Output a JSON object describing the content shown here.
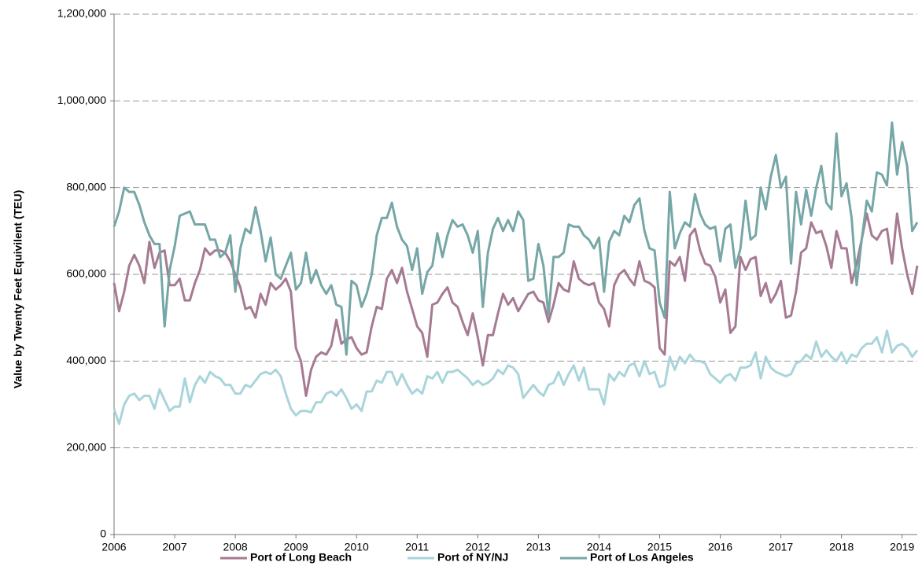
{
  "chart_data": {
    "type": "line",
    "y_label": "Value by Twenty Feet Equivilent (TEU)",
    "xlim": [
      2006,
      2019.25
    ],
    "xticks": [
      2006,
      2007,
      2008,
      2009,
      2010,
      2011,
      2012,
      2013,
      2014,
      2015,
      2016,
      2017,
      2018,
      2019
    ],
    "ylim": [
      0,
      1200000
    ],
    "yticks": [
      0,
      {
        "value": 200000,
        "label": "200,000"
      },
      {
        "value": 400000,
        "label": "400,000"
      },
      {
        "value": 600000,
        "label": "600,000"
      },
      {
        "value": 800000,
        "label": "800,000"
      },
      {
        "value": 1000000,
        "label": "1,000,000"
      },
      {
        "value": 1200000,
        "label": "1,200,000"
      }
    ],
    "grid": true,
    "legend": "bottom",
    "x": [
      2006,
      2006.083,
      2006.167,
      2006.25,
      2006.333,
      2006.417,
      2006.5,
      2006.583,
      2006.667,
      2006.75,
      2006.833,
      2006.917,
      2007,
      2007.083,
      2007.167,
      2007.25,
      2007.333,
      2007.417,
      2007.5,
      2007.583,
      2007.667,
      2007.75,
      2007.833,
      2007.917,
      2008,
      2008.083,
      2008.167,
      2008.25,
      2008.333,
      2008.417,
      2008.5,
      2008.583,
      2008.667,
      2008.75,
      2008.833,
      2008.917,
      2009,
      2009.083,
      2009.167,
      2009.25,
      2009.333,
      2009.417,
      2009.5,
      2009.583,
      2009.667,
      2009.75,
      2009.833,
      2009.917,
      2010,
      2010.083,
      2010.167,
      2010.25,
      2010.333,
      2010.417,
      2010.5,
      2010.583,
      2010.667,
      2010.75,
      2010.833,
      2010.917,
      2011,
      2011.083,
      2011.167,
      2011.25,
      2011.333,
      2011.417,
      2011.5,
      2011.583,
      2011.667,
      2011.75,
      2011.833,
      2011.917,
      2012,
      2012.083,
      2012.167,
      2012.25,
      2012.333,
      2012.417,
      2012.5,
      2012.583,
      2012.667,
      2012.75,
      2012.833,
      2012.917,
      2013,
      2013.083,
      2013.167,
      2013.25,
      2013.333,
      2013.417,
      2013.5,
      2013.583,
      2013.667,
      2013.75,
      2013.833,
      2013.917,
      2014,
      2014.083,
      2014.167,
      2014.25,
      2014.333,
      2014.417,
      2014.5,
      2014.583,
      2014.667,
      2014.75,
      2014.833,
      2014.917,
      2015,
      2015.083,
      2015.167,
      2015.25,
      2015.333,
      2015.417,
      2015.5,
      2015.583,
      2015.667,
      2015.75,
      2015.833,
      2015.917,
      2016,
      2016.083,
      2016.167,
      2016.25,
      2016.333,
      2016.417,
      2016.5,
      2016.583,
      2016.667,
      2016.75,
      2016.833,
      2016.917,
      2017,
      2017.083,
      2017.167,
      2017.25,
      2017.333,
      2017.417,
      2017.5,
      2017.583,
      2017.667,
      2017.75,
      2017.833,
      2017.917,
      2018,
      2018.083,
      2018.167,
      2018.25,
      2018.333,
      2018.417,
      2018.5,
      2018.583,
      2018.667,
      2018.75,
      2018.833,
      2018.917,
      2019,
      2019.083,
      2019.167,
      2019.25
    ],
    "series": [
      {
        "name": "Port of Long Beach",
        "color": "#a67a92",
        "values": [
          580000,
          515000,
          560000,
          620000,
          645000,
          620000,
          580000,
          675000,
          615000,
          650000,
          655000,
          575000,
          575000,
          590000,
          540000,
          540000,
          580000,
          610000,
          660000,
          645000,
          655000,
          655000,
          650000,
          630000,
          600000,
          570000,
          520000,
          525000,
          500000,
          555000,
          530000,
          580000,
          565000,
          575000,
          590000,
          560000,
          430000,
          400000,
          320000,
          380000,
          410000,
          420000,
          415000,
          435000,
          495000,
          440000,
          450000,
          455000,
          430000,
          415000,
          420000,
          480000,
          525000,
          520000,
          590000,
          610000,
          580000,
          615000,
          560000,
          520000,
          480000,
          465000,
          410000,
          530000,
          535000,
          555000,
          570000,
          535000,
          525000,
          490000,
          460000,
          510000,
          455000,
          390000,
          460000,
          460000,
          510000,
          555000,
          530000,
          545000,
          515000,
          535000,
          555000,
          560000,
          540000,
          535000,
          490000,
          530000,
          580000,
          565000,
          560000,
          630000,
          590000,
          580000,
          575000,
          580000,
          535000,
          520000,
          480000,
          575000,
          600000,
          610000,
          590000,
          575000,
          630000,
          585000,
          580000,
          570000,
          430000,
          415000,
          630000,
          620000,
          640000,
          585000,
          690000,
          705000,
          655000,
          625000,
          620000,
          595000,
          535000,
          565000,
          465000,
          480000,
          640000,
          610000,
          635000,
          640000,
          550000,
          580000,
          535000,
          555000,
          585000,
          500000,
          505000,
          560000,
          650000,
          660000,
          720000,
          695000,
          700000,
          665000,
          615000,
          700000,
          660000,
          660000,
          580000,
          625000,
          680000,
          740000,
          690000,
          680000,
          700000,
          705000,
          625000,
          740000,
          660000,
          600000,
          555000,
          620000
        ]
      },
      {
        "name": "Port of NY/NJ",
        "color": "#a9d5da",
        "values": [
          290000,
          255000,
          300000,
          320000,
          325000,
          310000,
          320000,
          320000,
          290000,
          335000,
          310000,
          285000,
          295000,
          295000,
          360000,
          305000,
          345000,
          365000,
          350000,
          375000,
          365000,
          360000,
          345000,
          345000,
          325000,
          325000,
          345000,
          340000,
          355000,
          370000,
          375000,
          370000,
          380000,
          365000,
          325000,
          290000,
          275000,
          285000,
          285000,
          282000,
          305000,
          305000,
          325000,
          330000,
          320000,
          335000,
          315000,
          290000,
          300000,
          285000,
          330000,
          330000,
          355000,
          350000,
          375000,
          375000,
          345000,
          370000,
          345000,
          325000,
          335000,
          325000,
          365000,
          360000,
          375000,
          350000,
          375000,
          375000,
          380000,
          370000,
          360000,
          345000,
          355000,
          345000,
          350000,
          360000,
          380000,
          370000,
          390000,
          385000,
          370000,
          315000,
          330000,
          345000,
          330000,
          320000,
          345000,
          350000,
          375000,
          345000,
          370000,
          390000,
          355000,
          385000,
          335000,
          335000,
          335000,
          300000,
          370000,
          355000,
          375000,
          365000,
          390000,
          395000,
          365000,
          400000,
          370000,
          375000,
          340000,
          345000,
          410000,
          380000,
          410000,
          395000,
          415000,
          400000,
          400000,
          395000,
          370000,
          360000,
          350000,
          365000,
          370000,
          355000,
          385000,
          385000,
          390000,
          420000,
          360000,
          410000,
          385000,
          375000,
          370000,
          365000,
          370000,
          395000,
          400000,
          415000,
          405000,
          445000,
          410000,
          425000,
          410000,
          400000,
          420000,
          395000,
          415000,
          410000,
          430000,
          440000,
          440000,
          455000,
          420000,
          470000,
          420000,
          435000,
          440000,
          430000,
          410000,
          425000
        ]
      },
      {
        "name": "Port of Los Angeles",
        "color": "#76a6a6",
        "values": [
          710000,
          745000,
          800000,
          790000,
          790000,
          760000,
          720000,
          690000,
          670000,
          670000,
          480000,
          610000,
          665000,
          735000,
          740000,
          745000,
          715000,
          715000,
          715000,
          680000,
          680000,
          640000,
          650000,
          690000,
          560000,
          660000,
          705000,
          695000,
          755000,
          700000,
          630000,
          685000,
          600000,
          590000,
          620000,
          650000,
          565000,
          580000,
          650000,
          580000,
          610000,
          575000,
          555000,
          575000,
          530000,
          525000,
          415000,
          585000,
          575000,
          525000,
          555000,
          600000,
          690000,
          730000,
          730000,
          765000,
          710000,
          680000,
          665000,
          610000,
          660000,
          555000,
          605000,
          620000,
          695000,
          640000,
          690000,
          725000,
          710000,
          715000,
          690000,
          650000,
          700000,
          525000,
          650000,
          705000,
          730000,
          700000,
          725000,
          700000,
          745000,
          725000,
          585000,
          590000,
          670000,
          620000,
          505000,
          640000,
          640000,
          650000,
          715000,
          710000,
          710000,
          690000,
          680000,
          660000,
          685000,
          560000,
          675000,
          700000,
          690000,
          735000,
          720000,
          760000,
          775000,
          700000,
          660000,
          655000,
          535000,
          500000,
          790000,
          660000,
          695000,
          720000,
          710000,
          785000,
          740000,
          715000,
          705000,
          710000,
          630000,
          705000,
          715000,
          615000,
          660000,
          770000,
          680000,
          690000,
          800000,
          750000,
          825000,
          875000,
          800000,
          825000,
          625000,
          790000,
          715000,
          795000,
          735000,
          800000,
          850000,
          765000,
          750000,
          925000,
          780000,
          810000,
          730000,
          575000,
          680000,
          770000,
          745000,
          835000,
          830000,
          805000,
          950000,
          830000,
          905000,
          850000,
          700000,
          720000
        ]
      }
    ]
  }
}
